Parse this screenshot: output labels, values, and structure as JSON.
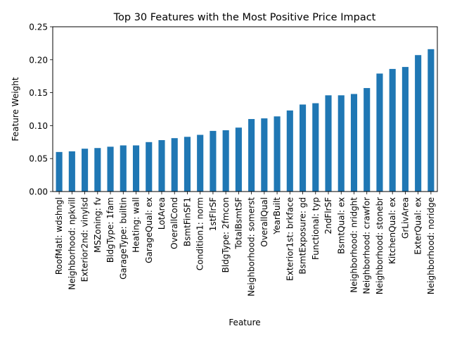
{
  "chart_data": {
    "type": "bar",
    "title": "Top 30 Features with the Most Positive Price Impact",
    "xlabel": "Feature",
    "ylabel": "Feature Weight",
    "ylim": [
      0,
      0.25
    ],
    "yticks": [
      "0.00",
      "0.05",
      "0.10",
      "0.15",
      "0.20",
      "0.25"
    ],
    "grid": false,
    "bar_color": "#1f77b4",
    "categories": [
      "RoofMatl: wdshngl",
      "Neighborhood: npkvill",
      "Exterior2nd: vinylsd",
      "MSZoning: fv",
      "BldgType: 1fam",
      "GarageType: builtin",
      "Heating: wall",
      "GarageQual: ex",
      "LotArea",
      "OverallCond",
      "BsmtFinSF1",
      "Condition1: norm",
      "1stFlrSF",
      "BldgType: 2fmcon",
      "TotalBsmtSF",
      "Neighborhood: somerst",
      "OverallQual",
      "YearBuilt",
      "Exterior1st: brkface",
      "BsmtExposure: gd",
      "Functional: typ",
      "2ndFlrSF",
      "BsmtQual: ex",
      "Neighborhood: nridght",
      "Neighborhood: crawfor",
      "Neighborhood: stonebr",
      "KitchenQual: ex",
      "GrLivArea",
      "ExterQual: ex",
      "Neighborhood: noridge"
    ],
    "values": [
      0.06,
      0.061,
      0.065,
      0.066,
      0.068,
      0.07,
      0.07,
      0.075,
      0.078,
      0.081,
      0.083,
      0.086,
      0.092,
      0.093,
      0.097,
      0.11,
      0.111,
      0.114,
      0.123,
      0.132,
      0.134,
      0.146,
      0.146,
      0.148,
      0.157,
      0.179,
      0.186,
      0.189,
      0.207,
      0.216
    ]
  }
}
